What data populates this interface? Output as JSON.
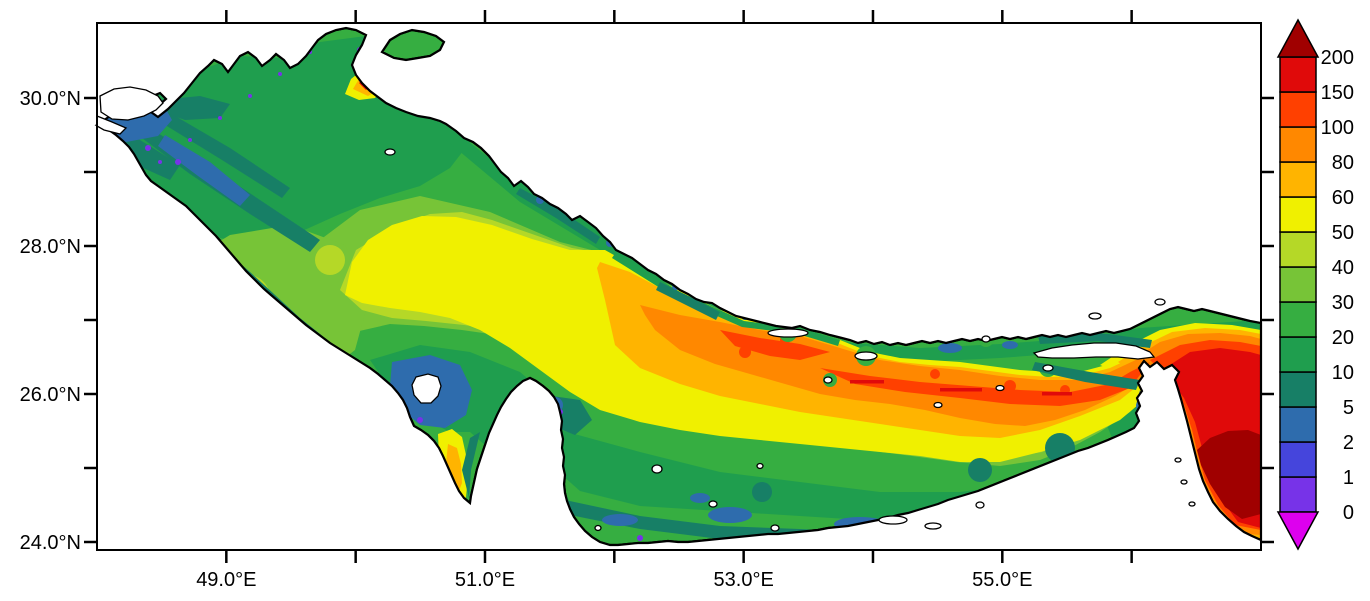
{
  "figure": {
    "background_color": "#FFFFFF",
    "frame_color": "#000000",
    "description": "Filled-contour geographic map of the Persian Gulf and Strait of Hormuz with latitude/longitude axes and a discrete vertical colorbar"
  },
  "chart_data": {
    "type": "heatmap",
    "subtype": "filled-contour-map",
    "region_depicted": "Persian Gulf and Strait of Hormuz",
    "title": "",
    "xlabel": "",
    "ylabel": "",
    "x_axis": {
      "unit_suffix": "°E",
      "range_lon": [
        48.0,
        57.0
      ],
      "major_ticks": [
        49.0,
        51.0,
        53.0,
        55.0
      ],
      "major_tick_labels": [
        "49.0°E",
        "51.0°E",
        "53.0°E",
        "55.0°E"
      ],
      "minor_ticks": [
        50.0,
        52.0,
        54.0,
        56.0
      ]
    },
    "y_axis": {
      "unit_suffix": "°N",
      "range_lat": [
        23.9,
        31.0
      ],
      "major_ticks": [
        30.0,
        28.0,
        26.0,
        24.0
      ],
      "major_tick_labels": [
        "30.0°N",
        "28.0°N",
        "26.0°N",
        "24.0°N"
      ],
      "minor_ticks": [
        29.0,
        27.0,
        25.0
      ]
    },
    "colorbar": {
      "orientation": "vertical",
      "position": "right",
      "levels": [
        0,
        1,
        2,
        5,
        10,
        20,
        30,
        40,
        50,
        60,
        80,
        100,
        150,
        200
      ],
      "level_labels": [
        "0",
        "1",
        "2",
        "5",
        "10",
        "20",
        "30",
        "40",
        "50",
        "60",
        "80",
        "100",
        "150",
        "200"
      ],
      "cell_colors_bottom_to_top": [
        "#7733E8",
        "#4545DC",
        "#2E6CAD",
        "#177F66",
        "#1F9E4E",
        "#36AE41",
        "#77C437",
        "#B5D827",
        "#F0F000",
        "#FFB400",
        "#FF8800",
        "#FF4000",
        "#E00A0A"
      ],
      "under_range_arrow_color": "#DD00EE",
      "over_range_arrow_color": "#A00000"
    },
    "field_regions": [
      {
        "area": "northwest head of gulf (Kuwait / Shatt al-Arab)",
        "values": "1-20 with 0-5 coastal plume"
      },
      {
        "area": "northwest-central basin",
        "values": "20-50"
      },
      {
        "area": "central axial band",
        "values": "50-80"
      },
      {
        "area": "deep axial trough along Iranian side 52E-56E",
        "values": "80-150 with thin 150-200 streaks"
      },
      {
        "area": "coastal fringes (Saudi, Qatar, UAE, Iran shores)",
        "values": "0-10"
      },
      {
        "area": "Gulf of Salwa strip west of Qatar",
        "values": "50-80"
      },
      {
        "area": "small coastal spot near 50.0E 30.2N",
        "values": "100-200"
      },
      {
        "area": "Strait of Hormuz bend",
        "values": "80-200"
      },
      {
        "area": "Gulf of Oman southeast corner",
        "values": "over 200"
      },
      {
        "area": "land and islands (Qatar, Bahrain, Qeshm, Musandam)",
        "values": "masked white"
      }
    ]
  }
}
